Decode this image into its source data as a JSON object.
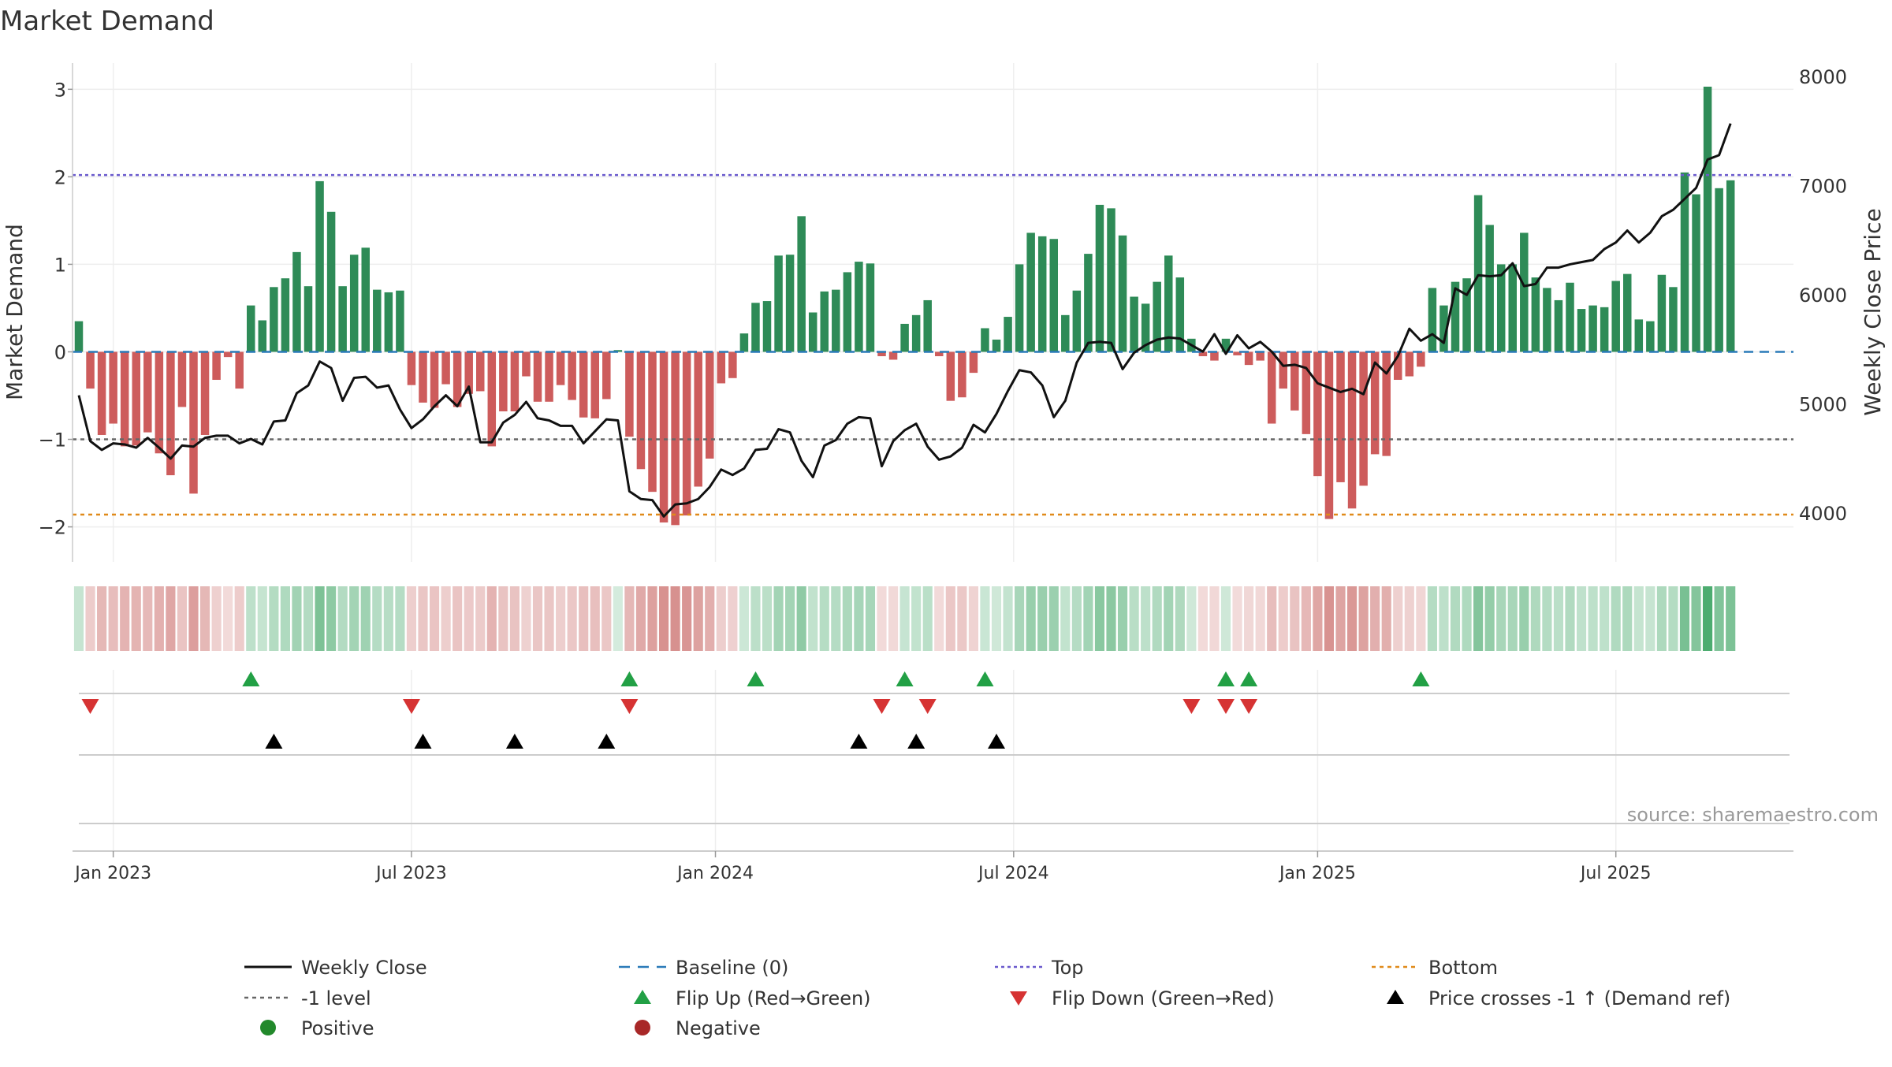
{
  "chart_data": {
    "type": "bar",
    "title": "Market Demand",
    "ylabel_left": "Market Demand",
    "ylabel_right": "Weekly Close Price",
    "ylim_left": [
      -2.4,
      3.3
    ],
    "ylim_right": [
      3554,
      8124
    ],
    "yticks_left": [
      {
        "value": -2,
        "label": "−2"
      },
      {
        "value": -1,
        "label": "−1"
      },
      {
        "value": 0,
        "label": "0"
      },
      {
        "value": 1,
        "label": "1"
      },
      {
        "value": 2,
        "label": "2"
      },
      {
        "value": 3,
        "label": "3"
      }
    ],
    "yticks_right": [
      {
        "value": 4000,
        "label": "4000"
      },
      {
        "value": 5000,
        "label": "5000"
      },
      {
        "value": 6000,
        "label": "6000"
      },
      {
        "value": 7000,
        "label": "7000"
      },
      {
        "value": 8000,
        "label": "8000"
      }
    ],
    "xticks": [
      {
        "week": 3,
        "label": "Jan 2023"
      },
      {
        "week": 29,
        "label": "Jul 2023"
      },
      {
        "week": 55.5,
        "label": "Jan 2024"
      },
      {
        "week": 81.5,
        "label": "Jul 2024"
      },
      {
        "week": 108,
        "label": "Jan 2025"
      },
      {
        "week": 134,
        "label": "Jul 2025"
      }
    ],
    "week_count": 145,
    "demand": [
      0.35,
      -0.42,
      -0.95,
      -0.82,
      -1.08,
      -1.07,
      -0.92,
      -1.16,
      -1.41,
      -0.63,
      -1.62,
      -0.95,
      -0.32,
      -0.06,
      -0.42,
      0.53,
      0.36,
      0.74,
      0.84,
      1.14,
      0.75,
      1.95,
      1.6,
      0.75,
      1.11,
      1.19,
      0.71,
      0.68,
      0.7,
      -0.38,
      -0.58,
      -0.64,
      -0.37,
      -0.63,
      -0.48,
      -0.45,
      -1.08,
      -0.68,
      -0.68,
      -0.28,
      -0.57,
      -0.57,
      -0.38,
      -0.55,
      -0.75,
      -0.76,
      -0.54,
      0.02,
      -0.97,
      -1.34,
      -1.6,
      -1.95,
      -1.98,
      -1.87,
      -1.54,
      -1.22,
      -0.36,
      -0.3,
      0.21,
      0.56,
      0.58,
      1.1,
      1.11,
      1.55,
      0.45,
      0.69,
      0.71,
      0.91,
      1.03,
      1.01,
      -0.05,
      -0.09,
      0.32,
      0.42,
      0.59,
      -0.05,
      -0.56,
      -0.52,
      -0.24,
      0.27,
      0.14,
      0.4,
      1.0,
      1.36,
      1.32,
      1.29,
      0.42,
      0.7,
      1.12,
      1.68,
      1.64,
      1.33,
      0.63,
      0.55,
      0.8,
      1.1,
      0.85,
      0.15,
      -0.05,
      -0.1,
      0.15,
      -0.04,
      -0.15,
      -0.1,
      -0.82,
      -0.42,
      -0.67,
      -0.94,
      -1.42,
      -1.91,
      -1.49,
      -1.79,
      -1.53,
      -1.17,
      -1.19,
      -0.32,
      -0.28,
      -0.17,
      0.73,
      0.53,
      0.8,
      0.84,
      1.79,
      1.45,
      1.0,
      1.0,
      1.36,
      0.85,
      0.73,
      0.59,
      0.79,
      0.49,
      0.53,
      0.51,
      0.81,
      0.89,
      0.37,
      0.35,
      0.88,
      0.74,
      2.05,
      1.8,
      3.03,
      1.87,
      1.96
    ],
    "close": [
      5080,
      4660,
      4580,
      4640,
      4630,
      4600,
      4690,
      4600,
      4500,
      4620,
      4610,
      4690,
      4710,
      4710,
      4640,
      4680,
      4630,
      4840,
      4850,
      5100,
      5170,
      5390,
      5330,
      5030,
      5240,
      5250,
      5150,
      5170,
      4950,
      4780,
      4860,
      4980,
      5080,
      4980,
      5160,
      4650,
      4650,
      4830,
      4900,
      5020,
      4870,
      4850,
      4800,
      4800,
      4640,
      4750,
      4860,
      4850,
      4200,
      4130,
      4120,
      3970,
      4080,
      4090,
      4130,
      4240,
      4400,
      4350,
      4410,
      4580,
      4590,
      4770,
      4740,
      4480,
      4330,
      4620,
      4670,
      4820,
      4880,
      4870,
      4430,
      4660,
      4760,
      4820,
      4610,
      4490,
      4520,
      4600,
      4810,
      4740,
      4910,
      5120,
      5310,
      5290,
      5170,
      4880,
      5030,
      5380,
      5560,
      5570,
      5560,
      5320,
      5470,
      5540,
      5590,
      5610,
      5600,
      5540,
      5480,
      5640,
      5460,
      5630,
      5510,
      5570,
      5480,
      5350,
      5360,
      5330,
      5190,
      5150,
      5110,
      5140,
      5090,
      5380,
      5280,
      5440,
      5690,
      5580,
      5640,
      5560,
      6060,
      6000,
      6180,
      6170,
      6180,
      6290,
      6080,
      6100,
      6250,
      6250,
      6280,
      6300,
      6320,
      6420,
      6480,
      6590,
      6480,
      6570,
      6720,
      6780,
      6880,
      6980,
      7240,
      7280,
      7570
    ],
    "levels": {
      "top": 2.02,
      "bottom": -1.86,
      "minus_one": -1,
      "baseline": 0
    },
    "flip_up_weeks": [
      15,
      48,
      59,
      72,
      79,
      100,
      102,
      117
    ],
    "flip_down_weeks": [
      1,
      29,
      48,
      70,
      74,
      97,
      100,
      102
    ],
    "price_cross_weeks": [
      17,
      30,
      38,
      46,
      68,
      73,
      80
    ],
    "legend": [
      {
        "key": "close",
        "label": "Weekly Close"
      },
      {
        "key": "baseline",
        "label": "Baseline (0)"
      },
      {
        "key": "top",
        "label": "Top"
      },
      {
        "key": "bottom",
        "label": "Bottom"
      },
      {
        "key": "minus_one",
        "label": "-1 level"
      },
      {
        "key": "flip_up",
        "label": "Flip Up (Red→Green)"
      },
      {
        "key": "flip_down",
        "label": "Flip Down (Green→Red)"
      },
      {
        "key": "price_cross",
        "label": "Price crosses -1 ↑ (Demand ref)"
      },
      {
        "key": "positive",
        "label": "Positive"
      },
      {
        "key": "negative",
        "label": "Negative"
      }
    ],
    "legend_position": "bottom",
    "source": "source: sharemaestro.com",
    "colors": {
      "positive_bar": "#2e8b57",
      "negative_bar": "#cd5c5c",
      "close_line": "#111111",
      "baseline": "#2a7ab8",
      "top": "#6a5acd",
      "bottom": "#e08a1a",
      "minus_one": "#666666",
      "flip_up": "#22a045",
      "flip_down": "#d63333",
      "price_cross": "#000000",
      "positive_dot": "#22892b",
      "negative_dot": "#a82828",
      "heat_positive": "#2e9d57",
      "heat_negative": "#c0504d"
    }
  }
}
